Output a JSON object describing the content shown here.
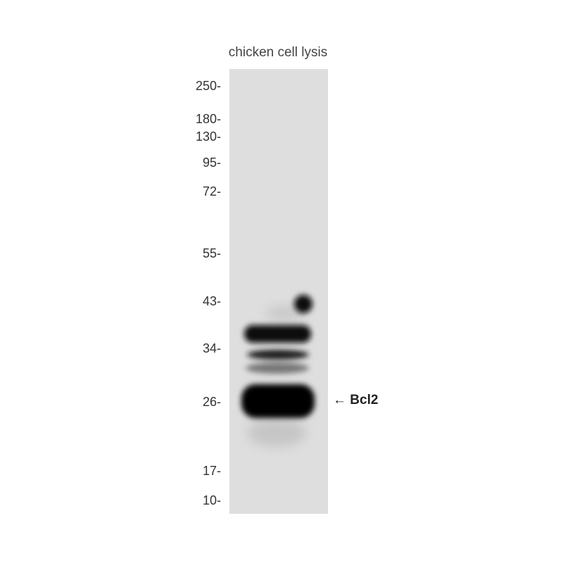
{
  "sample_label": "chicken cell lysis",
  "markers": [
    {
      "label": "250-",
      "kda": 250
    },
    {
      "label": "180-",
      "kda": 180
    },
    {
      "label": "130-",
      "kda": 130
    },
    {
      "label": "95-",
      "kda": 95
    },
    {
      "label": "72-",
      "kda": 72
    },
    {
      "label": "55-",
      "kda": 55
    },
    {
      "label": "43-",
      "kda": 43
    },
    {
      "label": "34-",
      "kda": 34
    },
    {
      "label": "26-",
      "kda": 26
    },
    {
      "label": "17-",
      "kda": 17
    },
    {
      "label": "10-",
      "kda": 10
    }
  ],
  "target": {
    "arrow": "←",
    "name": "Bcl2"
  },
  "colors": {
    "membrane": "#dedede",
    "band": "#0a0a0a"
  }
}
